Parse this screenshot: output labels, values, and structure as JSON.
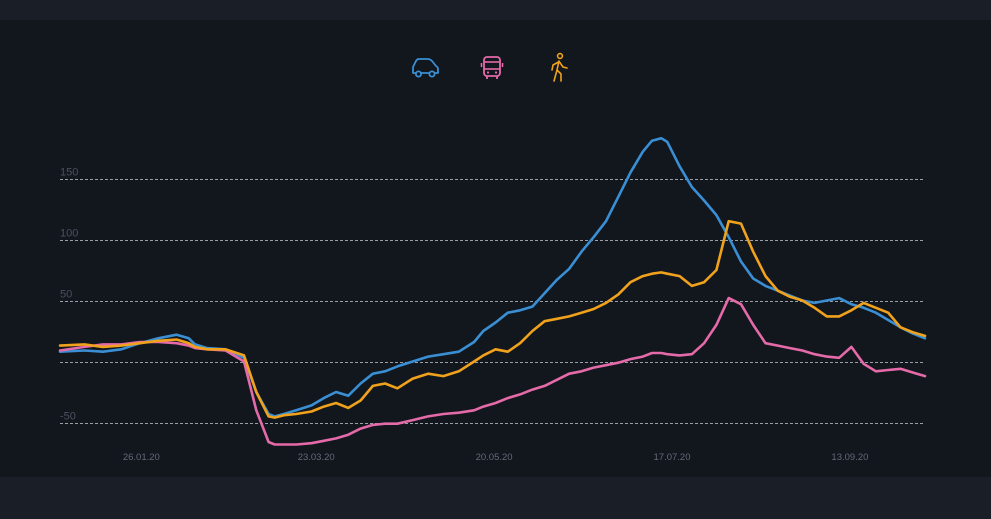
{
  "legend": {
    "items": [
      {
        "icon": "car-icon",
        "color": "#3a8fd4"
      },
      {
        "icon": "bus-icon",
        "color": "#e46aa9"
      },
      {
        "icon": "walking-icon",
        "color": "#f0a21c"
      }
    ]
  },
  "chart_data": {
    "type": "line",
    "ylim": [
      -60,
      190
    ],
    "y_ticks": [
      150,
      100,
      50,
      0,
      -50
    ],
    "y_tick_labels": [
      "150",
      "100",
      "50",
      "",
      "-50"
    ],
    "grid": true,
    "x_tick_labels": [
      "26.01.20",
      "23.03.20",
      "20.05.20",
      "17.07.20",
      "13.09.20"
    ],
    "x_range_days": [
      -20,
      262
    ],
    "x_tick_days": [
      0,
      57,
      115,
      173,
      231
    ],
    "series": [
      {
        "color": "#3a8fd4",
        "x": [
          -20,
          -12,
          -6,
          0,
          6,
          12,
          18,
          22,
          24,
          28,
          34,
          40,
          44,
          48,
          50,
          53,
          57,
          62,
          66,
          70,
          74,
          78,
          82,
          86,
          90,
          95,
          100,
          105,
          110,
          115,
          118,
          122,
          126,
          130,
          134,
          138,
          142,
          146,
          150,
          154,
          158,
          162,
          166,
          170,
          173,
          176,
          178,
          182,
          186,
          190,
          194,
          198,
          202,
          206,
          210,
          214,
          218,
          222,
          226,
          230,
          234,
          238,
          242,
          246,
          250,
          254,
          258,
          262
        ],
        "y": [
          8,
          9,
          8,
          10,
          15,
          19,
          22,
          19,
          14,
          11,
          10,
          3,
          -25,
          -43,
          -45,
          -43,
          -40,
          -36,
          -30,
          -25,
          -28,
          -18,
          -10,
          -8,
          -4,
          0,
          4,
          6,
          8,
          16,
          25,
          32,
          40,
          42,
          45,
          56,
          67,
          76,
          90,
          102,
          115,
          135,
          155,
          172,
          181,
          183,
          180,
          160,
          143,
          132,
          120,
          102,
          82,
          68,
          62,
          58,
          54,
          50,
          48,
          50,
          52,
          47,
          44,
          40,
          34,
          28,
          23,
          19
        ]
      },
      {
        "color": "#e46aa9",
        "x": [
          -20,
          -12,
          -6,
          0,
          6,
          12,
          18,
          22,
          24,
          28,
          34,
          40,
          44,
          48,
          50,
          53,
          57,
          62,
          66,
          70,
          74,
          78,
          82,
          86,
          90,
          95,
          100,
          105,
          110,
          115,
          118,
          122,
          126,
          130,
          134,
          138,
          142,
          146,
          150,
          154,
          158,
          162,
          166,
          170,
          173,
          176,
          178,
          182,
          186,
          190,
          194,
          198,
          202,
          206,
          210,
          214,
          218,
          222,
          226,
          230,
          234,
          238,
          242,
          246,
          250,
          254,
          258,
          262
        ],
        "y": [
          9,
          12,
          14,
          14,
          16,
          16,
          15,
          13,
          11,
          10,
          9,
          0,
          -40,
          -66,
          -68,
          -68,
          -68,
          -67,
          -65,
          -63,
          -60,
          -55,
          -52,
          -51,
          -51,
          -48,
          -45,
          -43,
          -42,
          -40,
          -37,
          -34,
          -30,
          -27,
          -23,
          -20,
          -15,
          -10,
          -8,
          -5,
          -3,
          -1,
          2,
          4,
          7,
          7,
          6,
          5,
          6,
          15,
          30,
          52,
          47,
          30,
          15,
          13,
          11,
          9,
          6,
          4,
          3,
          12,
          -2,
          -8,
          -7,
          -6,
          -9,
          -12
        ]
      },
      {
        "color": "#f0a21c",
        "x": [
          -20,
          -12,
          -6,
          0,
          6,
          12,
          18,
          22,
          24,
          28,
          34,
          40,
          44,
          48,
          50,
          53,
          57,
          62,
          66,
          70,
          74,
          78,
          82,
          86,
          90,
          95,
          100,
          105,
          110,
          115,
          118,
          122,
          126,
          130,
          134,
          138,
          142,
          146,
          150,
          154,
          158,
          162,
          166,
          170,
          173,
          176,
          178,
          182,
          186,
          190,
          194,
          198,
          202,
          206,
          210,
          214,
          218,
          222,
          226,
          230,
          234,
          238,
          242,
          246,
          250,
          254,
          258,
          262
        ],
        "y": [
          13,
          14,
          12,
          13,
          15,
          17,
          18,
          15,
          12,
          10,
          10,
          5,
          -25,
          -45,
          -46,
          -44,
          -43,
          -41,
          -37,
          -34,
          -38,
          -32,
          -20,
          -18,
          -22,
          -14,
          -10,
          -12,
          -8,
          0,
          5,
          10,
          8,
          15,
          25,
          33,
          35,
          37,
          40,
          43,
          48,
          55,
          65,
          70,
          72,
          73,
          72,
          70,
          62,
          65,
          75,
          115,
          113,
          90,
          70,
          58,
          53,
          50,
          44,
          37,
          37,
          42,
          48,
          44,
          40,
          28,
          24,
          21
        ]
      }
    ]
  }
}
